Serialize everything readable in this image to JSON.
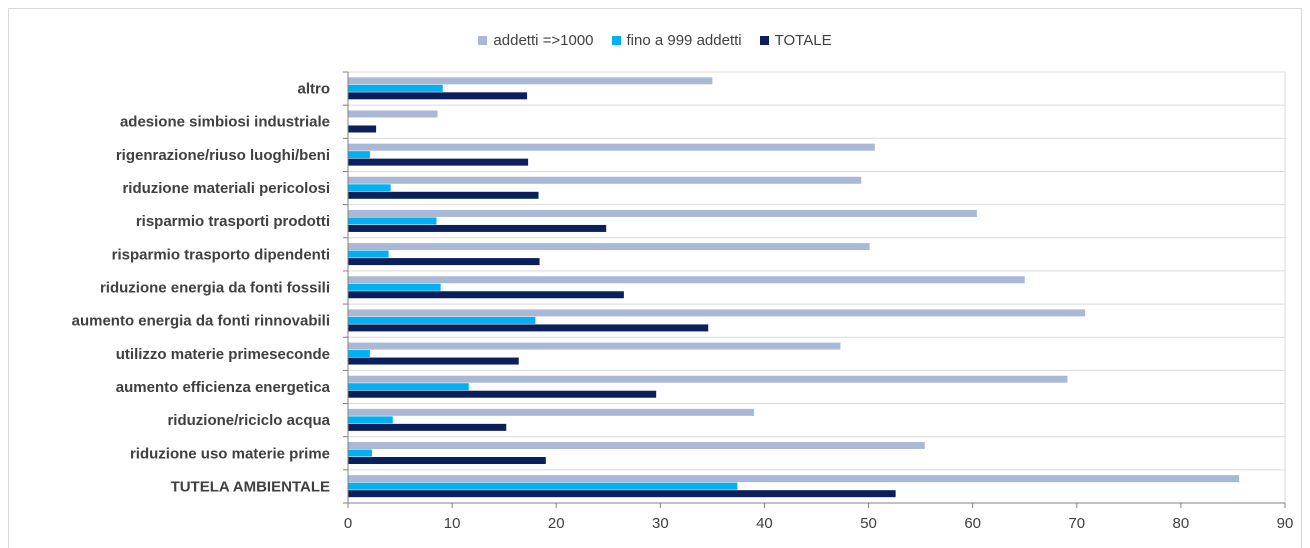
{
  "chart_data": {
    "type": "bar",
    "orientation": "horizontal",
    "categories": [
      "altro",
      "adesione simbiosi industriale",
      "rigenrazione/riuso luoghi/beni",
      "riduzione materiali pericolosi",
      "risparmio trasporti prodotti",
      "risparmio trasporto dipendenti",
      "riduzione energia da fonti fossili",
      "aumento energia da fonti rinnovabili",
      "utilizzo materie primeseconde",
      "aumento efficienza energetica",
      "riduzione/riciclo acqua",
      "riduzione uso materie prime",
      "TUTELA AMBIENTALE"
    ],
    "series": [
      {
        "name": "addetti =>1000",
        "color": "#a9b8d6",
        "values": [
          35.0,
          8.6,
          50.6,
          49.3,
          60.4,
          50.1,
          65.0,
          70.8,
          47.3,
          69.1,
          39.0,
          55.4,
          85.6
        ]
      },
      {
        "name": "fino a 999 addetti",
        "color": "#00b0f0",
        "values": [
          9.1,
          0,
          2.1,
          4.1,
          8.5,
          3.9,
          8.9,
          18.0,
          2.1,
          11.6,
          4.3,
          2.3,
          37.4
        ]
      },
      {
        "name": "TOTALE",
        "color": "#0b1f5c",
        "values": [
          17.2,
          2.7,
          17.3,
          18.3,
          24.8,
          18.4,
          26.5,
          34.6,
          16.4,
          29.6,
          15.2,
          19.0,
          52.6
        ]
      }
    ],
    "xlim": [
      0,
      90
    ],
    "xticks": [
      "0",
      "10",
      "20",
      "30",
      "40",
      "50",
      "60",
      "70",
      "80",
      "90"
    ],
    "grid": true,
    "legend_position": "top-center"
  }
}
